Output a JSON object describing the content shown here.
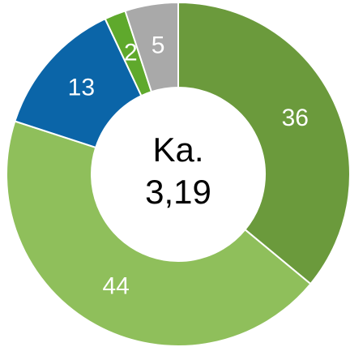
{
  "chart_data": {
    "type": "donut",
    "categories": [
      null,
      null,
      null,
      null,
      null
    ],
    "values": [
      36,
      44,
      13,
      2,
      5
    ],
    "colors": [
      "#6b9a3c",
      "#8fbf5b",
      "#0b65a8",
      "#5fa92c",
      "#a9a9a9"
    ],
    "center_text": [
      "Ka.",
      "3,19"
    ]
  }
}
